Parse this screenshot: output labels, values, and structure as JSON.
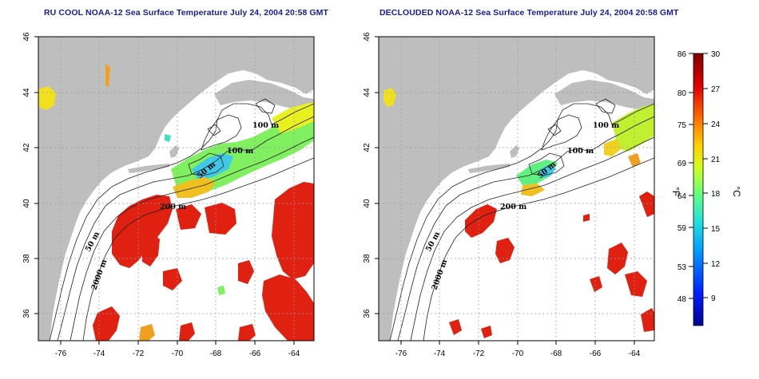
{
  "panels": [
    {
      "title": "RU COOL NOAA-12 Sea Surface Temperature July 24, 2004 20:58 GMT",
      "contour_labels": [
        "100 m",
        "100 m",
        "50 m",
        "200 m",
        "50 m",
        "2000 m"
      ]
    },
    {
      "title": "DECLOUDED NOAA-12 Sea Surface Temperature July 24, 2004 20:58 GMT",
      "contour_labels": [
        "100 m",
        "100 m",
        "50 m",
        "200 m",
        "50 m",
        "2000 m"
      ]
    }
  ],
  "axes": {
    "x_ticks": [
      "-76",
      "-74",
      "-72",
      "-70",
      "-68",
      "-66",
      "-64"
    ],
    "y_ticks": [
      "36",
      "38",
      "40",
      "42",
      "44",
      "46"
    ]
  },
  "colorbar": {
    "fahrenheit_ticks": [
      "86",
      "80",
      "75",
      "69",
      "64",
      "59",
      "53",
      "48"
    ],
    "celsius_ticks": [
      "30",
      "27",
      "24",
      "21",
      "18",
      "15",
      "12",
      "9"
    ],
    "left_unit": "°F",
    "right_unit": "°C",
    "colors": [
      "#00008f",
      "#0020ff",
      "#00a0ff",
      "#20e0e0",
      "#60ff80",
      "#d0ff20",
      "#ffd000",
      "#ff7000",
      "#e00000",
      "#800000"
    ]
  },
  "colors": {
    "land": "#bebebe",
    "ocean": "#ffffff",
    "title": "#1a1a9c",
    "grid": "#9a9a9a"
  }
}
